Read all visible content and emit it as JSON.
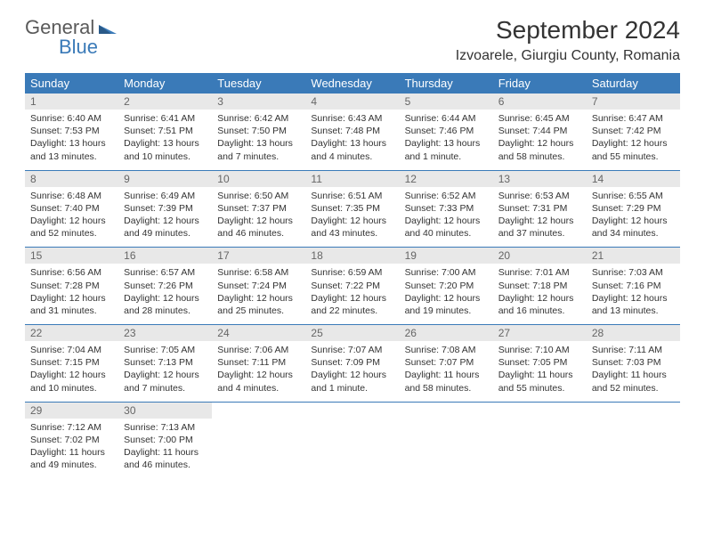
{
  "logo": {
    "general": "General",
    "blue": "Blue"
  },
  "title": "September 2024",
  "location": "Izvoarele, Giurgiu County, Romania",
  "colors": {
    "header_bg": "#3a7ab8",
    "header_text": "#ffffff",
    "daynum_bg": "#e8e8e8",
    "daynum_text": "#666666",
    "body_text": "#333333",
    "rule": "#3a7ab8"
  },
  "day_headers": [
    "Sunday",
    "Monday",
    "Tuesday",
    "Wednesday",
    "Thursday",
    "Friday",
    "Saturday"
  ],
  "weeks": [
    [
      {
        "n": "1",
        "sunrise": "Sunrise: 6:40 AM",
        "sunset": "Sunset: 7:53 PM",
        "day": "Daylight: 13 hours and 13 minutes."
      },
      {
        "n": "2",
        "sunrise": "Sunrise: 6:41 AM",
        "sunset": "Sunset: 7:51 PM",
        "day": "Daylight: 13 hours and 10 minutes."
      },
      {
        "n": "3",
        "sunrise": "Sunrise: 6:42 AM",
        "sunset": "Sunset: 7:50 PM",
        "day": "Daylight: 13 hours and 7 minutes."
      },
      {
        "n": "4",
        "sunrise": "Sunrise: 6:43 AM",
        "sunset": "Sunset: 7:48 PM",
        "day": "Daylight: 13 hours and 4 minutes."
      },
      {
        "n": "5",
        "sunrise": "Sunrise: 6:44 AM",
        "sunset": "Sunset: 7:46 PM",
        "day": "Daylight: 13 hours and 1 minute."
      },
      {
        "n": "6",
        "sunrise": "Sunrise: 6:45 AM",
        "sunset": "Sunset: 7:44 PM",
        "day": "Daylight: 12 hours and 58 minutes."
      },
      {
        "n": "7",
        "sunrise": "Sunrise: 6:47 AM",
        "sunset": "Sunset: 7:42 PM",
        "day": "Daylight: 12 hours and 55 minutes."
      }
    ],
    [
      {
        "n": "8",
        "sunrise": "Sunrise: 6:48 AM",
        "sunset": "Sunset: 7:40 PM",
        "day": "Daylight: 12 hours and 52 minutes."
      },
      {
        "n": "9",
        "sunrise": "Sunrise: 6:49 AM",
        "sunset": "Sunset: 7:39 PM",
        "day": "Daylight: 12 hours and 49 minutes."
      },
      {
        "n": "10",
        "sunrise": "Sunrise: 6:50 AM",
        "sunset": "Sunset: 7:37 PM",
        "day": "Daylight: 12 hours and 46 minutes."
      },
      {
        "n": "11",
        "sunrise": "Sunrise: 6:51 AM",
        "sunset": "Sunset: 7:35 PM",
        "day": "Daylight: 12 hours and 43 minutes."
      },
      {
        "n": "12",
        "sunrise": "Sunrise: 6:52 AM",
        "sunset": "Sunset: 7:33 PM",
        "day": "Daylight: 12 hours and 40 minutes."
      },
      {
        "n": "13",
        "sunrise": "Sunrise: 6:53 AM",
        "sunset": "Sunset: 7:31 PM",
        "day": "Daylight: 12 hours and 37 minutes."
      },
      {
        "n": "14",
        "sunrise": "Sunrise: 6:55 AM",
        "sunset": "Sunset: 7:29 PM",
        "day": "Daylight: 12 hours and 34 minutes."
      }
    ],
    [
      {
        "n": "15",
        "sunrise": "Sunrise: 6:56 AM",
        "sunset": "Sunset: 7:28 PM",
        "day": "Daylight: 12 hours and 31 minutes."
      },
      {
        "n": "16",
        "sunrise": "Sunrise: 6:57 AM",
        "sunset": "Sunset: 7:26 PM",
        "day": "Daylight: 12 hours and 28 minutes."
      },
      {
        "n": "17",
        "sunrise": "Sunrise: 6:58 AM",
        "sunset": "Sunset: 7:24 PM",
        "day": "Daylight: 12 hours and 25 minutes."
      },
      {
        "n": "18",
        "sunrise": "Sunrise: 6:59 AM",
        "sunset": "Sunset: 7:22 PM",
        "day": "Daylight: 12 hours and 22 minutes."
      },
      {
        "n": "19",
        "sunrise": "Sunrise: 7:00 AM",
        "sunset": "Sunset: 7:20 PM",
        "day": "Daylight: 12 hours and 19 minutes."
      },
      {
        "n": "20",
        "sunrise": "Sunrise: 7:01 AM",
        "sunset": "Sunset: 7:18 PM",
        "day": "Daylight: 12 hours and 16 minutes."
      },
      {
        "n": "21",
        "sunrise": "Sunrise: 7:03 AM",
        "sunset": "Sunset: 7:16 PM",
        "day": "Daylight: 12 hours and 13 minutes."
      }
    ],
    [
      {
        "n": "22",
        "sunrise": "Sunrise: 7:04 AM",
        "sunset": "Sunset: 7:15 PM",
        "day": "Daylight: 12 hours and 10 minutes."
      },
      {
        "n": "23",
        "sunrise": "Sunrise: 7:05 AM",
        "sunset": "Sunset: 7:13 PM",
        "day": "Daylight: 12 hours and 7 minutes."
      },
      {
        "n": "24",
        "sunrise": "Sunrise: 7:06 AM",
        "sunset": "Sunset: 7:11 PM",
        "day": "Daylight: 12 hours and 4 minutes."
      },
      {
        "n": "25",
        "sunrise": "Sunrise: 7:07 AM",
        "sunset": "Sunset: 7:09 PM",
        "day": "Daylight: 12 hours and 1 minute."
      },
      {
        "n": "26",
        "sunrise": "Sunrise: 7:08 AM",
        "sunset": "Sunset: 7:07 PM",
        "day": "Daylight: 11 hours and 58 minutes."
      },
      {
        "n": "27",
        "sunrise": "Sunrise: 7:10 AM",
        "sunset": "Sunset: 7:05 PM",
        "day": "Daylight: 11 hours and 55 minutes."
      },
      {
        "n": "28",
        "sunrise": "Sunrise: 7:11 AM",
        "sunset": "Sunset: 7:03 PM",
        "day": "Daylight: 11 hours and 52 minutes."
      }
    ],
    [
      {
        "n": "29",
        "sunrise": "Sunrise: 7:12 AM",
        "sunset": "Sunset: 7:02 PM",
        "day": "Daylight: 11 hours and 49 minutes."
      },
      {
        "n": "30",
        "sunrise": "Sunrise: 7:13 AM",
        "sunset": "Sunset: 7:00 PM",
        "day": "Daylight: 11 hours and 46 minutes."
      },
      null,
      null,
      null,
      null,
      null
    ]
  ]
}
